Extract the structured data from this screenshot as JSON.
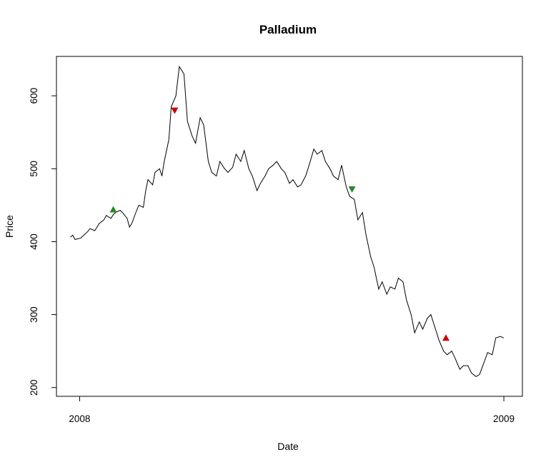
{
  "chart_data": {
    "type": "line",
    "title": "Palladium",
    "xlabel": "Date",
    "ylabel": "Price",
    "x_range": [
      "2007-12-12",
      "2009-01-17"
    ],
    "ylim": [
      188,
      654
    ],
    "x_ticks": [
      {
        "date": "2008-01-01",
        "label": "2008"
      },
      {
        "date": "2009-01-01",
        "label": "2009"
      }
    ],
    "y_ticks": [
      200,
      300,
      400,
      500,
      600
    ],
    "grid": false,
    "legend": "none",
    "colors": {
      "line": "#000000",
      "buy": "#228B22",
      "sell": "#CD0000"
    },
    "series": [
      {
        "x": [
          "2007-12-24",
          "2007-12-26",
          "2007-12-28",
          "2008-01-02",
          "2008-01-04",
          "2008-01-08",
          "2008-01-10",
          "2008-01-14",
          "2008-01-16",
          "2008-01-18",
          "2008-01-22",
          "2008-01-24",
          "2008-01-28",
          "2008-01-30",
          "2008-02-01",
          "2008-02-05",
          "2008-02-07",
          "2008-02-11",
          "2008-02-13",
          "2008-02-15",
          "2008-02-19",
          "2008-02-21",
          "2008-02-25",
          "2008-02-27",
          "2008-02-29",
          "2008-03-04",
          "2008-03-06",
          "2008-03-10",
          "2008-03-12",
          "2008-03-14",
          "2008-03-18",
          "2008-03-20",
          "2008-03-24",
          "2008-03-27",
          "2008-03-31",
          "2008-04-03",
          "2008-04-07",
          "2008-04-10",
          "2008-04-14",
          "2008-04-17",
          "2008-04-21",
          "2008-04-24",
          "2008-04-28",
          "2008-05-01",
          "2008-05-05",
          "2008-05-08",
          "2008-05-12",
          "2008-05-15",
          "2008-05-19",
          "2008-05-22",
          "2008-05-26",
          "2008-05-29",
          "2008-06-02",
          "2008-06-05",
          "2008-06-09",
          "2008-06-12",
          "2008-06-16",
          "2008-06-19",
          "2008-06-23",
          "2008-06-26",
          "2008-06-30",
          "2008-07-03",
          "2008-07-07",
          "2008-07-10",
          "2008-07-14",
          "2008-07-17",
          "2008-07-21",
          "2008-07-24",
          "2008-07-28",
          "2008-07-31",
          "2008-08-04",
          "2008-08-07",
          "2008-08-11",
          "2008-08-14",
          "2008-08-18",
          "2008-08-21",
          "2008-08-25",
          "2008-08-28",
          "2008-09-01",
          "2008-09-04",
          "2008-09-08",
          "2008-09-11",
          "2008-09-15",
          "2008-09-18",
          "2008-09-22",
          "2008-09-25",
          "2008-09-29",
          "2008-10-02",
          "2008-10-06",
          "2008-10-09",
          "2008-10-13",
          "2008-10-16",
          "2008-10-20",
          "2008-10-23",
          "2008-10-27",
          "2008-10-30",
          "2008-11-03",
          "2008-11-06",
          "2008-11-10",
          "2008-11-13",
          "2008-11-17",
          "2008-11-20",
          "2008-11-24",
          "2008-11-27",
          "2008-12-01",
          "2008-12-04",
          "2008-12-08",
          "2008-12-11",
          "2008-12-15",
          "2008-12-18",
          "2008-12-22",
          "2008-12-25",
          "2008-12-29",
          "2009-01-01"
        ],
        "y": [
          406,
          409,
          403,
          405,
          408,
          414,
          418,
          415,
          420,
          425,
          430,
          436,
          432,
          437,
          440,
          443,
          440,
          432,
          420,
          425,
          442,
          450,
          447,
          470,
          485,
          478,
          495,
          500,
          490,
          510,
          540,
          585,
          600,
          640,
          630,
          565,
          545,
          535,
          570,
          560,
          510,
          495,
          490,
          510,
          500,
          495,
          502,
          520,
          510,
          525,
          500,
          490,
          470,
          480,
          490,
          500,
          505,
          510,
          500,
          495,
          480,
          485,
          475,
          478,
          490,
          505,
          527,
          520,
          525,
          510,
          500,
          490,
          485,
          505,
          475,
          462,
          458,
          430,
          440,
          410,
          380,
          365,
          335,
          345,
          328,
          338,
          335,
          350,
          345,
          320,
          300,
          275,
          290,
          280,
          295,
          300,
          280,
          265,
          250,
          245,
          250,
          240,
          225,
          230,
          230,
          220,
          215,
          218,
          235,
          248,
          245,
          268,
          270,
          268
        ]
      }
    ],
    "markers": [
      {
        "date": "2008-01-30",
        "price": 444,
        "direction": "up",
        "color": "#228B22"
      },
      {
        "date": "2008-03-23",
        "price": 580,
        "direction": "down",
        "color": "#CD0000"
      },
      {
        "date": "2008-08-23",
        "price": 472,
        "direction": "down",
        "color": "#228B22"
      },
      {
        "date": "2008-11-12",
        "price": 268,
        "direction": "up",
        "color": "#CD0000"
      }
    ]
  }
}
